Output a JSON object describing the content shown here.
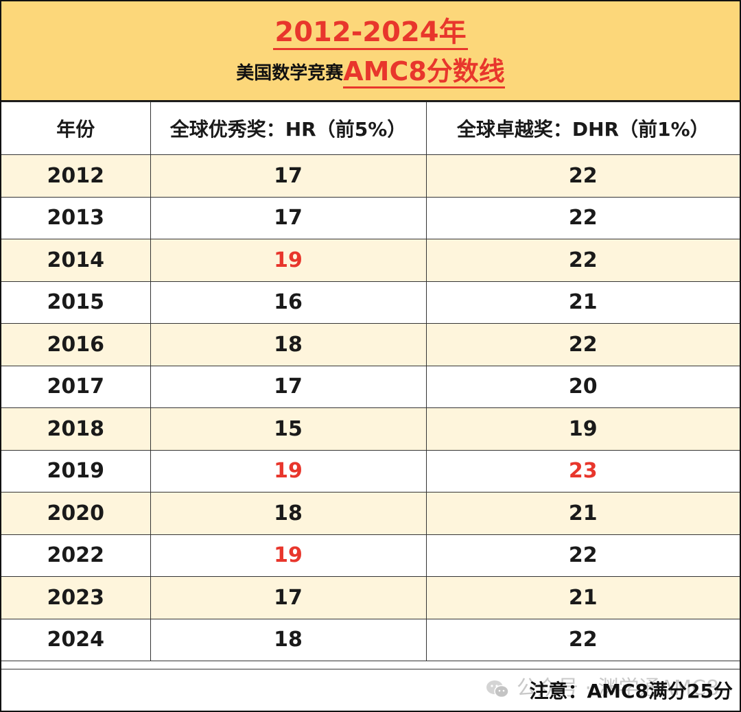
{
  "title": {
    "line1": "2012-2024年",
    "line2_prefix": "美国数学竞赛",
    "line2_highlight": "AMC8分数线"
  },
  "table": {
    "headers": [
      "年份",
      "全球优秀奖：HR（前5%）",
      "全球卓越奖：DHR（前1%）"
    ],
    "rows": [
      {
        "year": "2012",
        "hr": "17",
        "dhr": "22"
      },
      {
        "year": "2013",
        "hr": "17",
        "dhr": "22"
      },
      {
        "year": "2014",
        "hr": "19",
        "dhr": "22"
      },
      {
        "year": "2015",
        "hr": "16",
        "dhr": "21"
      },
      {
        "year": "2016",
        "hr": "18",
        "dhr": "22"
      },
      {
        "year": "2017",
        "hr": "17",
        "dhr": "20"
      },
      {
        "year": "2018",
        "hr": "15",
        "dhr": "19"
      },
      {
        "year": "2019",
        "hr": "19",
        "dhr": "23"
      },
      {
        "year": "2020",
        "hr": "18",
        "dhr": "21"
      },
      {
        "year": "2022",
        "hr": "19",
        "dhr": "22"
      },
      {
        "year": "2023",
        "hr": "17",
        "dhr": "21"
      },
      {
        "year": "2024",
        "hr": "18",
        "dhr": "22"
      }
    ]
  },
  "colors": {
    "header_band": "#fcd77a",
    "alt_row": "#fef5dc",
    "highlight_red": "#e8362c"
  },
  "footer": {
    "watermark": "公众号 · 渊学通AMC8",
    "watermark_icon": "wechat-icon",
    "note": "注意：AMC8满分25分"
  }
}
